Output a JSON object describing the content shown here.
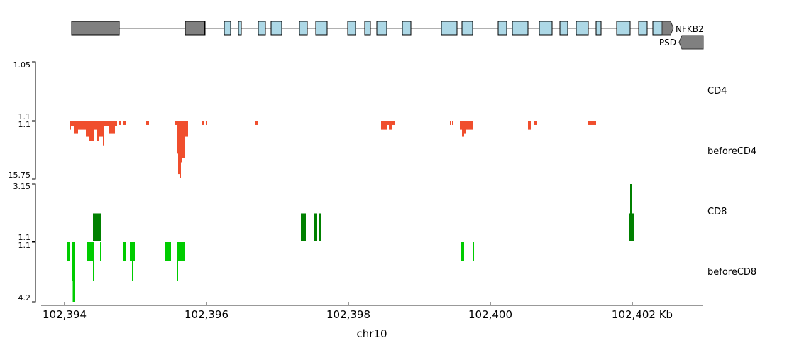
{
  "chart_data": {
    "type": "bar",
    "title": "",
    "xlabel": "chr10",
    "x_unit": "Kb",
    "xlim": [
      102393.67,
      102402.99
    ],
    "xticks": [
      102394,
      102396,
      102398,
      102400,
      102402
    ],
    "xtick_labels": [
      "102,394",
      "102,396",
      "102,398",
      "102,400",
      "102,402 Kb"
    ],
    "genes": [
      {
        "name": "NFKB2",
        "strand": "+",
        "start": 102394.1,
        "end": 102402.58,
        "utr": [
          [
            102394.1,
            102394.77
          ],
          [
            102395.7,
            102395.97
          ],
          [
            102402.42,
            102402.58
          ]
        ],
        "exons": [
          [
            102395.97,
            102395.98
          ],
          [
            102396.25,
            102396.34
          ],
          [
            102396.45,
            102396.49
          ],
          [
            102396.73,
            102396.83
          ],
          [
            102396.91,
            102397.06
          ],
          [
            102397.31,
            102397.42
          ],
          [
            102397.54,
            102397.7
          ],
          [
            102397.99,
            102398.1
          ],
          [
            102398.23,
            102398.31
          ],
          [
            102398.4,
            102398.54
          ],
          [
            102398.76,
            102398.88
          ],
          [
            102399.31,
            102399.53
          ],
          [
            102399.6,
            102399.75
          ],
          [
            102400.11,
            102400.23
          ],
          [
            102400.31,
            102400.53
          ],
          [
            102400.69,
            102400.87
          ],
          [
            102400.98,
            102401.09
          ],
          [
            102401.21,
            102401.38
          ],
          [
            102401.49,
            102401.56
          ],
          [
            102401.78,
            102401.97
          ],
          [
            102402.09,
            102402.21
          ],
          [
            102402.29,
            102402.42
          ]
        ]
      },
      {
        "name": "PSD",
        "strand": "-",
        "start": 102402.66,
        "end": 102403.5
      }
    ],
    "series": [
      {
        "name": "CD4",
        "ylim_labels": [
          "1.05",
          "1.1"
        ],
        "ylim": [
          1.05,
          1.1
        ],
        "color": "#f04e2d",
        "inverted": false,
        "intervals": []
      },
      {
        "name": "beforeCD4",
        "ylim_labels": [
          "1.1",
          "15.75"
        ],
        "ylim": [
          1.1,
          15.75
        ],
        "color": "#f04e2d",
        "inverted": true,
        "intervals": [
          [
            102394.07,
            102394.09,
            3.2
          ],
          [
            102394.09,
            102394.13,
            2.2
          ],
          [
            102394.13,
            102394.19,
            4.1
          ],
          [
            102394.19,
            102394.3,
            3.2
          ],
          [
            102394.3,
            102394.34,
            5.0
          ],
          [
            102394.34,
            102394.41,
            6.1
          ],
          [
            102394.41,
            102394.45,
            3.2
          ],
          [
            102394.45,
            102394.49,
            6.0
          ],
          [
            102394.49,
            102394.54,
            5.0
          ],
          [
            102394.54,
            102394.56,
            7.2
          ],
          [
            102394.56,
            102394.62,
            2.2
          ],
          [
            102394.62,
            102394.71,
            4.1
          ],
          [
            102394.71,
            102394.74,
            2.2
          ],
          [
            102394.77,
            102394.79,
            2.0
          ],
          [
            102394.83,
            102394.86,
            2.0
          ],
          [
            102395.15,
            102395.19,
            2.0
          ],
          [
            102395.55,
            102395.58,
            2.0
          ],
          [
            102395.58,
            102395.6,
            9.3
          ],
          [
            102395.6,
            102395.62,
            14.5
          ],
          [
            102395.62,
            102395.64,
            15.5
          ],
          [
            102395.64,
            102395.66,
            11.5
          ],
          [
            102395.66,
            102395.7,
            10.4
          ],
          [
            102395.7,
            102395.74,
            5.0
          ],
          [
            102395.94,
            102395.97,
            2.0
          ],
          [
            102396.0,
            102396.01,
            2.0
          ],
          [
            102396.69,
            102396.72,
            2.0
          ],
          [
            102398.46,
            102398.54,
            3.2
          ],
          [
            102398.54,
            102398.57,
            2.0
          ],
          [
            102398.57,
            102398.61,
            3.2
          ],
          [
            102398.61,
            102398.66,
            2.0
          ],
          [
            102399.43,
            102399.44,
            2.0
          ],
          [
            102399.46,
            102399.47,
            2.0
          ],
          [
            102399.57,
            102399.6,
            3.2
          ],
          [
            102399.6,
            102399.63,
            5.0
          ],
          [
            102399.63,
            102399.66,
            4.1
          ],
          [
            102399.66,
            102399.75,
            3.2
          ],
          [
            102400.53,
            102400.57,
            3.2
          ],
          [
            102400.61,
            102400.66,
            2.0
          ],
          [
            102401.38,
            102401.49,
            2.0
          ]
        ]
      },
      {
        "name": "CD8",
        "ylim_labels": [
          "3.15",
          "1.1"
        ],
        "ylim": [
          1.1,
          3.15
        ],
        "color": "#008000",
        "inverted": false,
        "intervals": [
          [
            102394.4,
            102394.51,
            2.1
          ],
          [
            102397.33,
            102397.4,
            2.1
          ],
          [
            102397.52,
            102397.56,
            2.1
          ],
          [
            102397.58,
            102397.61,
            2.1
          ],
          [
            102401.95,
            102402.02,
            2.1
          ],
          [
            102401.97,
            102402.0,
            3.15
          ]
        ]
      },
      {
        "name": "beforeCD8",
        "ylim_labels": [
          "1.1",
          "4.2"
        ],
        "ylim": [
          1.1,
          4.2
        ],
        "color": "#00cc00",
        "inverted": true,
        "intervals": [
          [
            102394.04,
            102394.08,
            2.07
          ],
          [
            102394.1,
            102394.115,
            3.1
          ],
          [
            102394.115,
            102394.14,
            4.2
          ],
          [
            102394.14,
            102394.15,
            3.1
          ],
          [
            102394.32,
            102394.41,
            2.07
          ],
          [
            102394.4,
            102394.41,
            3.1
          ],
          [
            102394.5,
            102394.51,
            2.07
          ],
          [
            102394.83,
            102394.86,
            2.07
          ],
          [
            102394.92,
            102394.93,
            2.07
          ],
          [
            102394.93,
            102394.99,
            2.07
          ],
          [
            102394.95,
            102394.97,
            3.1
          ],
          [
            102395.41,
            102395.5,
            2.07
          ],
          [
            102395.58,
            102395.7,
            2.07
          ],
          [
            102395.59,
            102395.6,
            3.1
          ],
          [
            102399.59,
            102399.63,
            2.07
          ],
          [
            102399.75,
            102399.77,
            2.07
          ]
        ]
      }
    ]
  }
}
